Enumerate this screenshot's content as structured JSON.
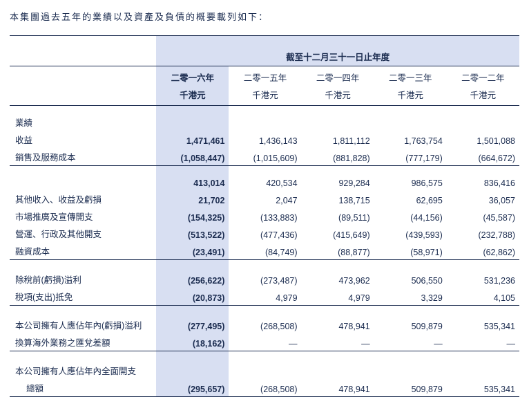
{
  "intro": "本集團過去五年的業績以及資產及負債的概要載列如下：",
  "header": {
    "span_title": "截至十二月三十一日止年度",
    "years": [
      "二零一六年",
      "二零一五年",
      "二零一四年",
      "二零一三年",
      "二零一二年"
    ],
    "units": [
      "千港元",
      "千港元",
      "千港元",
      "千港元",
      "千港元"
    ]
  },
  "sections": {
    "results_label": "業績",
    "rows1": [
      {
        "label": "收益",
        "v": [
          "1,471,461",
          "1,436,143",
          "1,811,112",
          "1,763,754",
          "1,501,088"
        ]
      },
      {
        "label": "銷售及服務成本",
        "v": [
          "(1,058,447)",
          "(1,015,609)",
          "(881,828)",
          "(777,179)",
          "(664,672)"
        ]
      }
    ],
    "subtotal_top": {
      "v": [
        "413,014",
        "420,534",
        "929,284",
        "986,575",
        "836,416"
      ]
    },
    "rows2": [
      {
        "label": "其他收入、收益及虧損",
        "v": [
          "21,702",
          "2,047",
          "138,715",
          "62,695",
          "36,057"
        ]
      },
      {
        "label": "市場推廣及宣傳開支",
        "v": [
          "(154,325)",
          "(133,883)",
          "(89,511)",
          "(44,156)",
          "(45,587)"
        ]
      },
      {
        "label": "營運、行政及其他開支",
        "v": [
          "(513,522)",
          "(477,436)",
          "(415,649)",
          "(439,593)",
          "(232,788)"
        ]
      },
      {
        "label": "融資成本",
        "v": [
          "(23,491)",
          "(84,749)",
          "(88,877)",
          "(58,971)",
          "(62,862)"
        ]
      }
    ],
    "rows3": [
      {
        "label": "除稅前(虧損)溢利",
        "v": [
          "(256,622)",
          "(273,487)",
          "473,962",
          "506,550",
          "531,236"
        ]
      },
      {
        "label": "稅項(支出)抵免",
        "v": [
          "(20,873)",
          "4,979",
          "4,979",
          "3,329",
          "4,105"
        ]
      }
    ],
    "rows4": [
      {
        "label": "本公司擁有人應佔年內(虧損)溢利",
        "v": [
          "(277,495)",
          "(268,508)",
          "478,941",
          "509,879",
          "535,341"
        ]
      },
      {
        "label": "換算海外業務之匯兌差額",
        "v": [
          "(18,162)",
          "—",
          "—",
          "—",
          "—"
        ]
      }
    ],
    "total_label_line1": "本公司擁有人應佔年內全面開支",
    "total_label_line2": "總額",
    "total": {
      "v": [
        "(295,657)",
        "(268,508)",
        "478,941",
        "509,879",
        "535,341"
      ]
    }
  },
  "style": {
    "highlight_bg": "#d8dff2",
    "text_color": "#1a2b4f"
  }
}
